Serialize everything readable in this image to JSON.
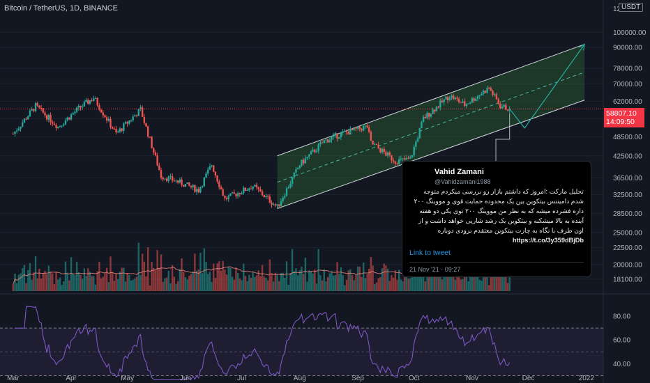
{
  "header": {
    "title": "Bitcoin / TetherUS, 1D, BINANCE",
    "currency": "USDT",
    "top_axis_label": "12"
  },
  "price_tag": {
    "price": "58807.10",
    "countdown": "14:09:50"
  },
  "chart_data": [
    {
      "type": "candlestick",
      "title": "Bitcoin / TetherUS, 1D, BINANCE",
      "y_scale": "log",
      "ylim": [
        16500,
        125000
      ],
      "y_ticks": [
        "100000.00",
        "90000.00",
        "78000.00",
        "70000.00",
        "62000.00",
        "55000.00",
        "48500.00",
        "42500.00",
        "36500.00",
        "32500.00",
        "28500.00",
        "25000.00",
        "22500.00",
        "20000.00",
        "18100.00"
      ],
      "x_ticks": [
        "Mar",
        "Apr",
        "May",
        "Jun",
        "Jul",
        "Aug",
        "Sep",
        "Oct",
        "Nov",
        "Dec",
        "2022"
      ],
      "last_price": 58807.1,
      "close_series": [
        {
          "date": "2021-03-01",
          "close": 49500
        },
        {
          "date": "2021-03-13",
          "close": 60000
        },
        {
          "date": "2021-03-25",
          "close": 52000
        },
        {
          "date": "2021-04-05",
          "close": 59000
        },
        {
          "date": "2021-04-13",
          "close": 63500
        },
        {
          "date": "2021-04-25",
          "close": 49500
        },
        {
          "date": "2021-05-08",
          "close": 58500
        },
        {
          "date": "2021-05-12",
          "close": 49500
        },
        {
          "date": "2021-05-19",
          "close": 37000
        },
        {
          "date": "2021-05-28",
          "close": 35500
        },
        {
          "date": "2021-06-08",
          "close": 33500
        },
        {
          "date": "2021-06-15",
          "close": 40000
        },
        {
          "date": "2021-06-22",
          "close": 31500
        },
        {
          "date": "2021-07-07",
          "close": 34500
        },
        {
          "date": "2021-07-20",
          "close": 29800
        },
        {
          "date": "2021-08-01",
          "close": 40000
        },
        {
          "date": "2021-08-14",
          "close": 47000
        },
        {
          "date": "2021-08-23",
          "close": 49500
        },
        {
          "date": "2021-09-06",
          "close": 52000
        },
        {
          "date": "2021-09-08",
          "close": 46500
        },
        {
          "date": "2021-09-21",
          "close": 41000
        },
        {
          "date": "2021-09-29",
          "close": 41500
        },
        {
          "date": "2021-10-06",
          "close": 55000
        },
        {
          "date": "2021-10-20",
          "close": 64500
        },
        {
          "date": "2021-10-28",
          "close": 60500
        },
        {
          "date": "2021-11-10",
          "close": 68000
        },
        {
          "date": "2021-11-16",
          "close": 60000
        },
        {
          "date": "2021-11-21",
          "close": 58807
        }
      ],
      "annotations": [
        {
          "type": "ascending_channel",
          "upper": [
            [
              "2021-07-20",
              42500
            ],
            [
              "2021-12-31",
              92000
            ]
          ],
          "lower": [
            [
              "2021-07-20",
              29500
            ],
            [
              "2021-12-31",
              62500
            ]
          ]
        },
        {
          "type": "projection_path",
          "points": [
            [
              "2021-11-21",
              58807
            ],
            [
              "2021-11-29",
              51500
            ],
            [
              "2021-12-31",
              92000
            ]
          ]
        }
      ]
    },
    {
      "type": "bar",
      "title": "Volume",
      "note": "volume histogram with moving average overlay, no printed scale"
    },
    {
      "type": "line",
      "title": "RSI",
      "ylim": [
        25,
        90
      ],
      "y_ticks": [
        "80.00",
        "60.00",
        "40.00",
        "20.00"
      ],
      "band": [
        30,
        70
      ],
      "midline": 50
    }
  ],
  "tweet": {
    "name": "Vahid Zamani",
    "handle": "@Vahidzamani1988",
    "text": "تحلیل مارکت :امروز که داشتم بازار رو بررسی میکردم متوجه شدم دامیننس بیتکوین بین یک محدوده حمایت قوی و مووینگ ۲۰۰ داره فشرده میشه که به نظر من مووینگ ۲۰۰ توی یکی دو هفته آینده به بالا میشکنه و بیتکوین یک رشد شارپی خواهد داشت و از اون طرف با نگاه به چارت بیتکوین معتقدم بزودی دوباره",
    "link_inline": "https://t.co/3y359dBjDb",
    "link_label": "Link to tweet",
    "date": "21 Nov '21 · 09:27"
  },
  "colors": {
    "up": "#26a69a",
    "down": "#ef5350",
    "channel": "#388e3c",
    "rsi": "#7e57c2",
    "tweet_link": "#1d9bf0"
  }
}
